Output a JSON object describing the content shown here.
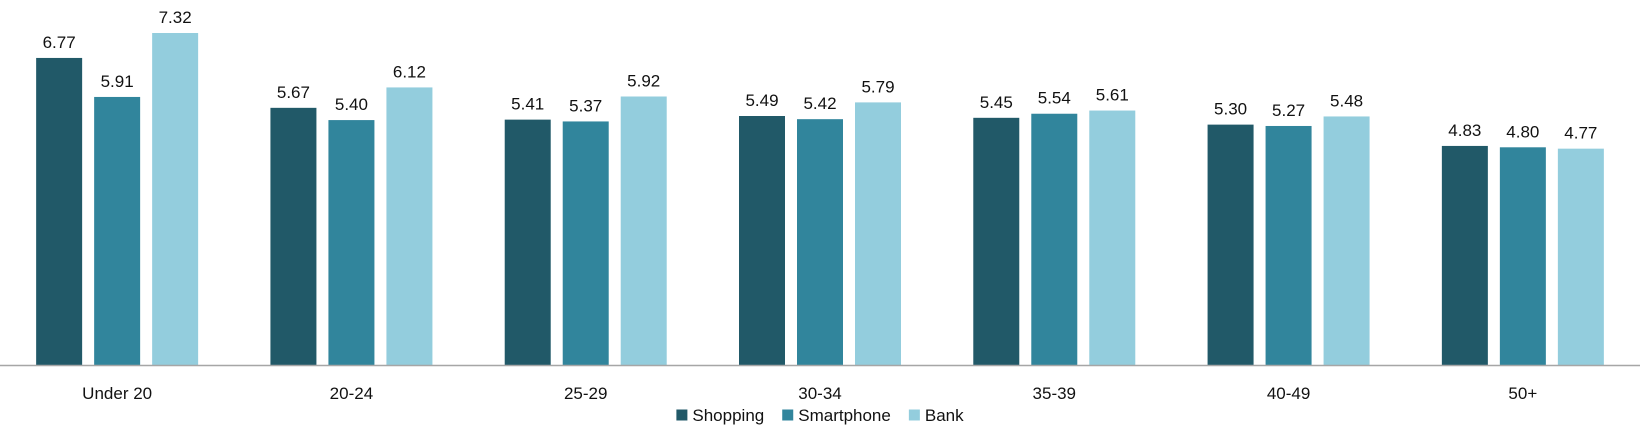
{
  "chart_data": {
    "type": "bar",
    "title": "",
    "xlabel": "",
    "ylabel": "",
    "categories": [
      "Under 20",
      "20-24",
      "25-29",
      "30-34",
      "35-39",
      "40-49",
      "50+"
    ],
    "series": [
      {
        "name": "Shopping",
        "color": "#215968",
        "values": [
          6.77,
          5.67,
          5.41,
          5.49,
          5.45,
          5.3,
          4.83
        ],
        "labels": [
          "6.77",
          "5.67",
          "5.41",
          "5.49",
          "5.45",
          "5.30",
          "4.83"
        ]
      },
      {
        "name": "Smartphone",
        "color": "#31859C",
        "values": [
          5.91,
          5.4,
          5.37,
          5.42,
          5.54,
          5.27,
          4.8
        ],
        "labels": [
          "5.91",
          "5.40",
          "5.37",
          "5.42",
          "5.54",
          "5.27",
          "4.80"
        ]
      },
      {
        "name": "Bank",
        "color": "#93CDDD",
        "values": [
          7.32,
          6.12,
          5.92,
          5.79,
          5.61,
          5.48,
          4.77
        ],
        "labels": [
          "7.32",
          "6.12",
          "5.92",
          "5.79",
          "5.61",
          "5.48",
          "4.77"
        ]
      }
    ],
    "ylim": [
      0,
      7.32
    ],
    "grid": false,
    "legend_position": "bottom-center",
    "axis_color": "#A6A6A6"
  }
}
